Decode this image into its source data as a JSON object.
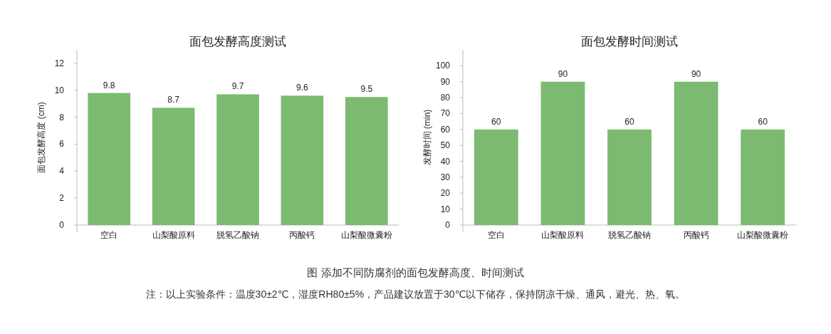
{
  "chart_data": [
    {
      "type": "bar",
      "title": "面包发酵高度测试",
      "ylabel": "面包发酵高度 (cm)",
      "categories": [
        "空白",
        "山梨酸原料",
        "脱氢乙酸钠",
        "丙酸钙",
        "山梨酸微囊粉"
      ],
      "values": [
        9.8,
        8.7,
        9.7,
        9.6,
        9.5
      ],
      "color": "#7cba72",
      "ylim": [
        0,
        13
      ],
      "yticks": [
        0,
        2,
        4,
        6,
        8,
        10,
        12
      ],
      "data_labels": true,
      "grid": false
    },
    {
      "type": "bar",
      "title": "面包发酵时间测试",
      "ylabel": "发酵时间 (min)",
      "categories": [
        "空白",
        "山梨酸原料",
        "脱氢乙酸钠",
        "丙酸钙",
        "山梨酸微囊粉"
      ],
      "values": [
        60,
        90,
        60,
        90,
        60
      ],
      "color": "#7cba72",
      "ylim": [
        0,
        110
      ],
      "yticks": [
        0,
        10,
        20,
        30,
        40,
        50,
        60,
        70,
        80,
        90,
        100
      ],
      "data_labels": true,
      "grid": false,
      "annotations": [
        "图 添加不同防腐剂的面包发酵高度、时间测试",
        "注：以上实验条件：温度30±2℃，湿度RH80±5%，产品建议放置于30℃以下储存，保持阴凉干燥、通风，避光、热、氧。"
      ]
    }
  ]
}
